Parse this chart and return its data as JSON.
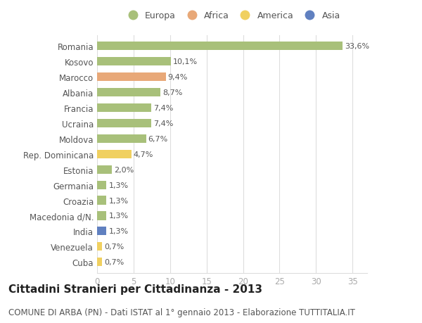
{
  "categories": [
    "Romania",
    "Kosovo",
    "Marocco",
    "Albania",
    "Francia",
    "Ucraina",
    "Moldova",
    "Rep. Dominicana",
    "Estonia",
    "Germania",
    "Croazia",
    "Macedonia d/N.",
    "India",
    "Venezuela",
    "Cuba"
  ],
  "values": [
    33.6,
    10.1,
    9.4,
    8.7,
    7.4,
    7.4,
    6.7,
    4.7,
    2.0,
    1.3,
    1.3,
    1.3,
    1.3,
    0.7,
    0.7
  ],
  "labels": [
    "33,6%",
    "10,1%",
    "9,4%",
    "8,7%",
    "7,4%",
    "7,4%",
    "6,7%",
    "4,7%",
    "2,0%",
    "1,3%",
    "1,3%",
    "1,3%",
    "1,3%",
    "0,7%",
    "0,7%"
  ],
  "continents": [
    "Europa",
    "Europa",
    "Africa",
    "Europa",
    "Europa",
    "Europa",
    "Europa",
    "America",
    "Europa",
    "Europa",
    "Europa",
    "Europa",
    "Asia",
    "America",
    "America"
  ],
  "continent_colors": {
    "Europa": "#a8c07a",
    "Africa": "#e8a878",
    "America": "#f0d060",
    "Asia": "#6080c0"
  },
  "legend_order": [
    "Europa",
    "Africa",
    "America",
    "Asia"
  ],
  "title": "Cittadini Stranieri per Cittadinanza - 2013",
  "subtitle": "COMUNE DI ARBA (PN) - Dati ISTAT al 1° gennaio 2013 - Elaborazione TUTTITALIA.IT",
  "xlim": [
    0,
    37
  ],
  "xticks": [
    0,
    5,
    10,
    15,
    20,
    25,
    30,
    35
  ],
  "bar_height": 0.55,
  "background_color": "#ffffff",
  "grid_color": "#dddddd",
  "axis_color": "#aaaaaa",
  "text_color": "#555555",
  "title_fontsize": 11,
  "subtitle_fontsize": 8.5,
  "tick_fontsize": 8.5,
  "label_fontsize": 8.0,
  "legend_fontsize": 9
}
